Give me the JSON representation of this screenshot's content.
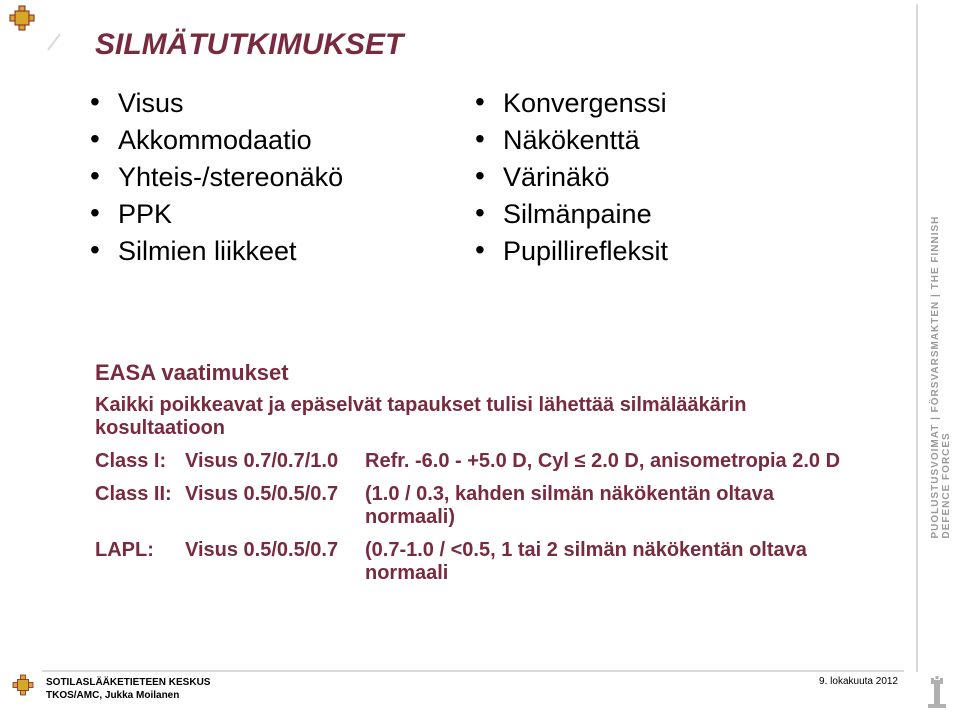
{
  "colors": {
    "maroon": "#782b3e",
    "text": "#000000",
    "light_line": "#d9d9d9",
    "side_text": "#9a9a9a",
    "emblem_yellow": "#d4a82a",
    "emblem_outline": "#8a1f1f"
  },
  "typography": {
    "title_size": 30,
    "bullet_size": 27,
    "req_heading_size": 22,
    "req_body_size": 20,
    "footer_size": 10,
    "side_size": 10
  },
  "title": "SILMÄTUTKIMUKSET",
  "left_bullets": [
    "Visus",
    "Akkommodaatio",
    "Yhteis-/stereonäkö",
    "PPK",
    "Silmien liikkeet"
  ],
  "right_bullets": [
    "Konvergenssi",
    "Näkökenttä",
    "Värinäkö",
    "Silmänpaine",
    "Pupillirefleksit"
  ],
  "requirements": {
    "heading": "EASA vaatimukset",
    "subheading": "Kaikki poikkeavat ja epäselvät tapaukset tulisi lähettää silmälääkärin kosultaatioon",
    "rows": [
      {
        "label": "Class I:",
        "visus": "Visus 0.7/0.7/1.0",
        "detail": "Refr. -6.0 - +5.0 D, Cyl ≤ 2.0 D, anisometropia 2.0 D"
      },
      {
        "label": "Class II:",
        "visus": "Visus 0.5/0.5/0.7",
        "detail": "(1.0 / 0.3, kahden silmän näkökentän oltava normaali)"
      },
      {
        "label": "LAPL:",
        "visus": "Visus 0.5/0.5/0.7",
        "detail": "(0.7-1.0 / <0.5, 1 tai 2 silmän näkökentän oltava normaali"
      }
    ]
  },
  "footer": {
    "org_line1": "SOTILASLÄÄKETIETEEN KESKUS",
    "org_line2": "TKOS/AMC, Jukka Moilanen",
    "date": "9. lokakuuta 2012"
  },
  "side_label": "PUOLUSTUSVOIMAT | FÖRSVARSMAKTEN | THE FINNISH DEFENCE FORCES"
}
